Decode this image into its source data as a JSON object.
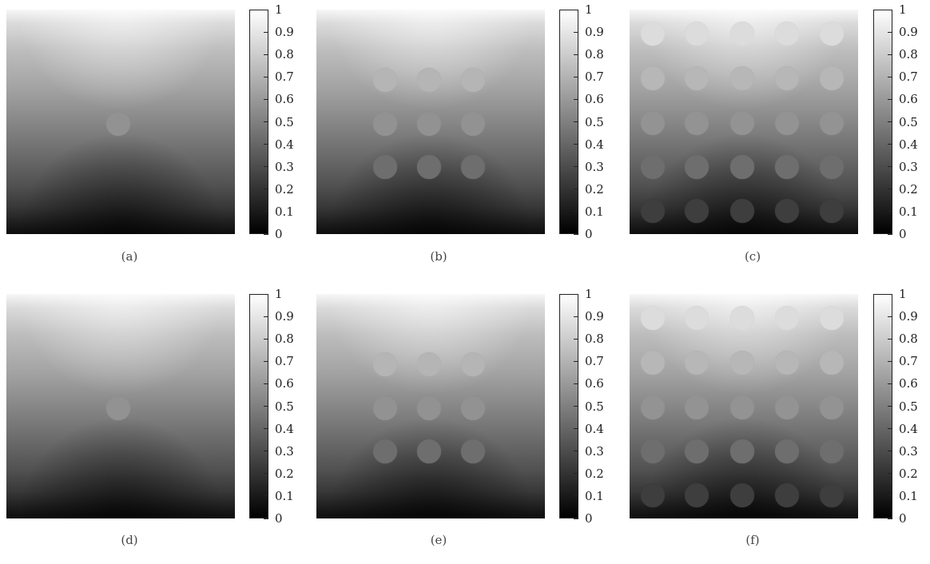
{
  "chart_data": [
    {
      "panel": "(a)",
      "type": "heatmap",
      "colormap": "gray",
      "colorbar": {
        "range": [
          0,
          1
        ],
        "ticks": [
          "0",
          "0.1",
          "0.2",
          "0.3",
          "0.4",
          "0.5",
          "0.6",
          "0.7",
          "0.8",
          "0.9",
          "1"
        ]
      },
      "inclusions": {
        "rows": 1,
        "cols": 1
      }
    },
    {
      "panel": "(b)",
      "type": "heatmap",
      "colormap": "gray",
      "colorbar": {
        "range": [
          0,
          1
        ],
        "ticks": [
          "0",
          "0.1",
          "0.2",
          "0.3",
          "0.4",
          "0.5",
          "0.6",
          "0.7",
          "0.8",
          "0.9",
          "1"
        ]
      },
      "inclusions": {
        "rows": 3,
        "cols": 3
      }
    },
    {
      "panel": "(c)",
      "type": "heatmap",
      "colormap": "gray",
      "colorbar": {
        "range": [
          0,
          1
        ],
        "ticks": [
          "0",
          "0.1",
          "0.2",
          "0.3",
          "0.4",
          "0.5",
          "0.6",
          "0.7",
          "0.8",
          "0.9",
          "1"
        ]
      },
      "inclusions": {
        "rows": 5,
        "cols": 5
      }
    },
    {
      "panel": "(d)",
      "type": "heatmap",
      "colormap": "gray",
      "colorbar": {
        "range": [
          0,
          1
        ],
        "ticks": [
          "0",
          "0.1",
          "0.2",
          "0.3",
          "0.4",
          "0.5",
          "0.6",
          "0.7",
          "0.8",
          "0.9",
          "1"
        ]
      },
      "inclusions": {
        "rows": 1,
        "cols": 1
      }
    },
    {
      "panel": "(e)",
      "type": "heatmap",
      "colormap": "gray",
      "colorbar": {
        "range": [
          0,
          1
        ],
        "ticks": [
          "0",
          "0.1",
          "0.2",
          "0.3",
          "0.4",
          "0.5",
          "0.6",
          "0.7",
          "0.8",
          "0.9",
          "1"
        ]
      },
      "inclusions": {
        "rows": 3,
        "cols": 3
      }
    },
    {
      "panel": "(f)",
      "type": "heatmap",
      "colormap": "gray",
      "colorbar": {
        "range": [
          0,
          1
        ],
        "ticks": [
          "0",
          "0.1",
          "0.2",
          "0.3",
          "0.4",
          "0.5",
          "0.6",
          "0.7",
          "0.8",
          "0.9",
          "1"
        ]
      },
      "inclusions": {
        "rows": 5,
        "cols": 5
      }
    }
  ]
}
